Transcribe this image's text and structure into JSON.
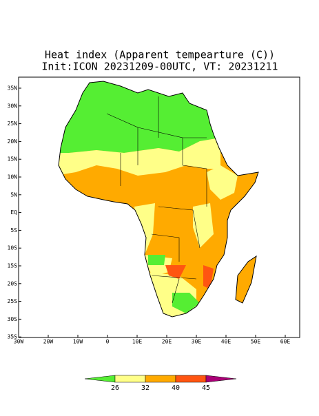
{
  "title": "Heat index (Apparent tempearture (C))",
  "subtitle": "Init:ICON 20231209-00UTC, VT: 20231211",
  "lat_labels": [
    "35N",
    "30N",
    "25N",
    "20N",
    "15N",
    "10N",
    "5N",
    "EQ",
    "5S",
    "10S",
    "15S",
    "20S",
    "25S",
    "30S",
    "35S"
  ],
  "lon_labels": [
    "30W",
    "20W",
    "10W",
    "0",
    "10E",
    "20E",
    "30E",
    "40E",
    "50E",
    "60E"
  ],
  "colorbar": {
    "levels": [
      26,
      32,
      40,
      45
    ],
    "colors": [
      "#55ee33",
      "#ffff88",
      "#ffaa00",
      "#ff5511",
      "#aa0077"
    ]
  }
}
